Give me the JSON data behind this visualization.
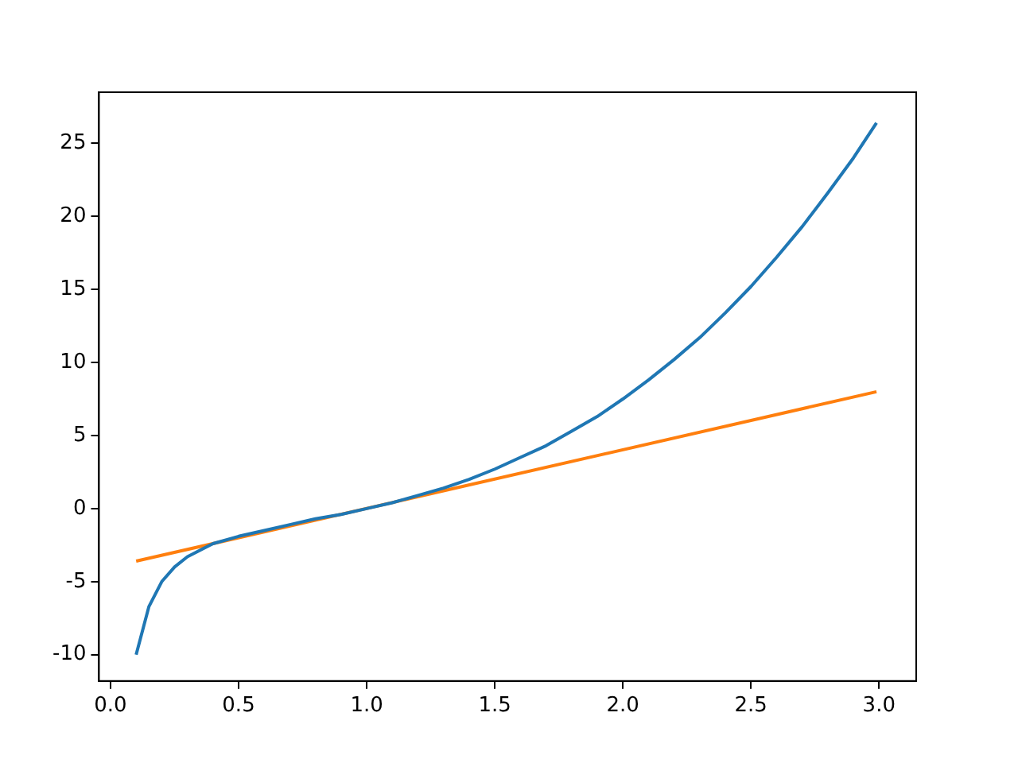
{
  "chart_data": {
    "type": "line",
    "xlim": [
      -0.045,
      3.145
    ],
    "xticks": [
      {
        "value": 0,
        "label": "0.0"
      },
      0.5,
      {
        "value": 1,
        "label": "1.0"
      },
      1.5,
      {
        "value": 2,
        "label": "2.0"
      },
      2.5,
      {
        "value": 3,
        "label": "3.0"
      }
    ],
    "ylim": [
      -11.8,
      28.5
    ],
    "yticks": [
      -10,
      -5,
      0,
      5,
      10,
      15,
      20,
      25
    ],
    "grid": false,
    "legend": false,
    "marker": "none",
    "line_style": "solid",
    "series": [
      {
        "color": "#1f77b4",
        "x": [
          0.1,
          0.15,
          0.2,
          0.25,
          0.3,
          0.4,
          0.5,
          0.6,
          0.7,
          0.8,
          0.9,
          1.0,
          1.1,
          1.2,
          1.3,
          1.4,
          1.5,
          1.6,
          1.7,
          1.8,
          1.9,
          2.0,
          2.1,
          2.2,
          2.3,
          2.4,
          2.5,
          2.6,
          2.7,
          2.8,
          2.9,
          2.99
        ],
        "values": [
          -10.0,
          -6.7,
          -5.0,
          -4.0,
          -3.3,
          -2.4,
          -1.9,
          -1.5,
          -1.1,
          -0.7,
          -0.4,
          0.0,
          0.4,
          0.9,
          1.4,
          2.0,
          2.7,
          3.5,
          4.3,
          5.3,
          6.3,
          7.5,
          8.8,
          10.2,
          11.7,
          13.4,
          15.2,
          17.2,
          19.3,
          21.6,
          24.0,
          26.4
        ]
      },
      {
        "color": "#ff7f0e",
        "x": [
          0.1,
          2.99
        ],
        "values": [
          -3.6,
          8.0
        ]
      }
    ]
  }
}
